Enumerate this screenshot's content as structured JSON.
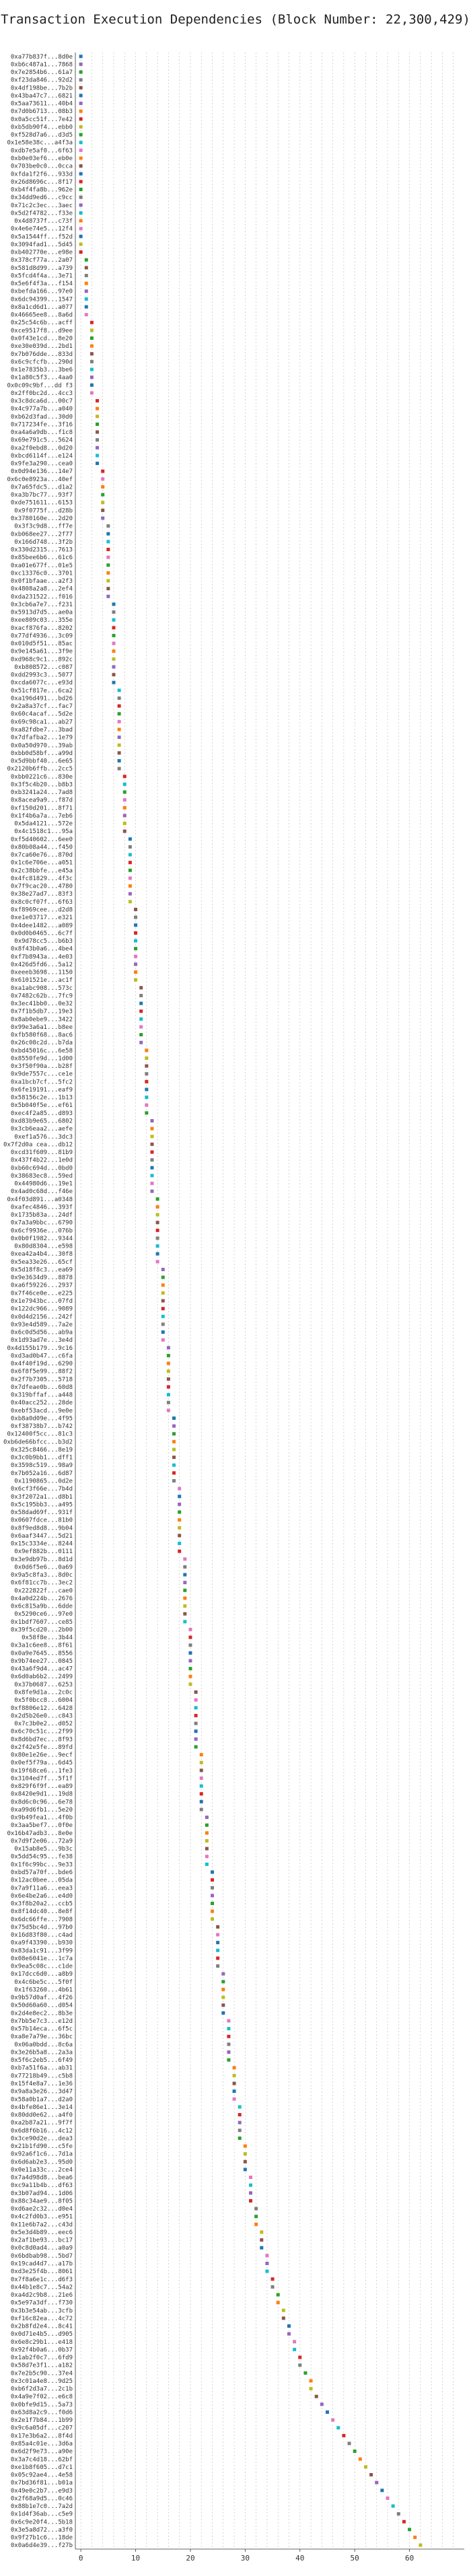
{
  "chart_data": {
    "type": "scatter",
    "title": "Transaction Execution Dependencies (Block Number: 22,300,429)",
    "xlabel": "",
    "ylabel": "",
    "xlim": [
      -1,
      70
    ],
    "xticks": [
      0,
      10,
      20,
      30,
      40,
      50,
      60
    ],
    "grid": true,
    "palette": [
      "#1f77b4",
      "#ff7f0e",
      "#2ca02c",
      "#d62728",
      "#9467bd",
      "#8c564b",
      "#e377c2",
      "#7f7f7f",
      "#bcbd22",
      "#17becf"
    ],
    "transactions": [
      "0xa77b837f...8d0e",
      "0xb6c487a1...7868",
      "0x7e2854b6...61a7",
      "0xf23da846...92d2",
      "0x4df198be...7b2b",
      "0x43ba47c7...6821",
      "0x5aa73611...40b4",
      "0x7d0b6713...08b3",
      "0x0a5cc51f...7e42",
      "0xb5db90f4...ebb0",
      "0xf528d7a6...d3d5",
      "0x1e58e38c...a4f3a",
      "0xdb7e5af0...6f63",
      "0xb0e03ef6...eb0e",
      "0x703be0c0...0cca",
      "0xfda1f2f6...933d",
      "0x26d8696c...8f17",
      "0xb4f4fa8b...962e",
      "0x34dd9ed6...c9cc",
      "0x71c2c3ec...3aec",
      "0x5d2f4782...f33e",
      "0x4d8737f...c73f",
      "0x4e6e74e5...12f4",
      "0x5a1544ff...f52d",
      "0x3094fad1...5d45",
      "0xb402770e...e98e",
      "0x378cf77a...2a07",
      "0x581d8d99...a739",
      "0x5fcd4f4a...3e71",
      "0x5e6f4f3a...f154",
      "0xbefda166...97e0",
      "0x6dc94399...1547",
      "0x8a1cd6d1...a077",
      "0x46665ee8...8a6d",
      "0x25c54c6b...acff",
      "0xce9517f8...d9ee",
      "0x0f43e1cd...8e20",
      "0xe30e039d...2bd1",
      "0x7b076dde...833d",
      "0x6c9cfcfb...290d",
      "0x1e7835b3...3be6",
      "0x1a80c5f3...4aa0",
      "0x0c09c9bf...dd f3",
      "0x2ff0bc2d...4cc3",
      "0x3c8dca6d...00c7",
      "0x4c977a7b...a040",
      "0xb62d3fad...30d0",
      "0x717234fe...3f16",
      "0xa4a6a9db...f1c8",
      "0x69e791c5...5624",
      "0xa2f0ebd8...0d20",
      "0xbcd6114f...e124",
      "0x9fe3a290...cea0",
      "0x0d94e136...14e7",
      "0x6c0e8923a...40ef",
      "0x7a65fdc5...d1a2",
      "0xa3b7bc77...93f7",
      "0xde751611...6153",
      "0x9f0775f...d28b",
      "0x3780160e...2d20",
      "0x3f3c9d8...ff7e",
      "0xb068ee27...2f77",
      "0x166d748...3f2b",
      "0x330d2315...7613",
      "0x85bee6b6...61c6",
      "0xa01e677f...01e5",
      "0xc13376c0...3701",
      "0x0f1bfaae...a2f3",
      "0x4808a2a8...2ef4",
      "0xda231522...f016",
      "0x3cb6a7e7...f231",
      "0x5913d7d5...ae0a",
      "0xee809c03...355e",
      "0xacf876fa...8202",
      "0x77df4936...3c09",
      "0x010d5f51...85ac",
      "0x9e145a61...3f9e",
      "0xd968c9c1...892c",
      "0xb808572...c087",
      "0xdd2993c3...5077",
      "0xcda6077c...e93d",
      "0x51cf817e...6ca2",
      "0xa196d491...bd26",
      "0x2a8a37cf...fac7",
      "0x60c4acaf...5d2e",
      "0x69c98ca1...ab27",
      "0xa82fdbe7...3bad",
      "0x7dfafba2...1e79",
      "0x0a50d970...39ab",
      "0xbb0d58bf...a99d",
      "0x5d9bbf40...6e65",
      "0x2120b6ffb...2cc5",
      "0xbb0221c6...830e",
      "0x3f5c4b20...b8b3",
      "0xb3241a24...7ad8",
      "0x8acea9a9...f87d",
      "0xf150d201...8f71",
      "0x1f4b6a7a...7eb6",
      "0x5da4121...572e",
      "0x4c1518c1...95a",
      "0xf5d40602...6ee0",
      "0x80b08a44...f450",
      "0x7ca60e76...870d",
      "0x1c6e706e...a051",
      "0x2c38bbfe...e45a",
      "0x4fc81829...4f3c",
      "0x7f9cac20...4780",
      "0x38e27ad7...83f3",
      "0x8c0cf07f...6f63",
      "0xf8969cee...d2d8",
      "0xe1e03717...e321",
      "0x4dee1482...a089",
      "0x0d0b0465...6c7f",
      "0x9d78cc5...b6b3",
      "0x8f43b0a6...4be4",
      "0xf7b8943a...4e03",
      "0x426d5fd6...5a12",
      "0xeeeb3698...1150",
      "0x6101521e...ac1f",
      "0xa1abc908...573c",
      "0x7482c62b...7fc9",
      "0x3ec41bb0...0e32",
      "0x7f1b5db7...19e3",
      "0x8ab0ebe9...3422",
      "0x99e3a6a1...b8ee",
      "0xfb580f68...8ac6",
      "0x26c08c2d...b7da",
      "0xbd45016c...6e58",
      "0x8550fe9d...1d00",
      "0x3f50f90a...b28f",
      "0x9de7557c...ce1e",
      "0xa1bcb7cf...5fc2",
      "0x6fe19191...eaf9",
      "0x58156c2e...1b13",
      "0x5b040f5e...ef61",
      "0xec4f2a85...d893",
      "0xd83b9e65...6802",
      "0x3cb6eaa2...aefe",
      "0xef1a576...3dc3",
      "0x7f2d0a cea...db12",
      "0xcd31f609...81b9",
      "0x437f4b22...1e0d",
      "0xb60c694d...0bd0",
      "0x38683ec8...59ed",
      "0x44980d6...19e1",
      "0x4ad0c68d...f46e",
      "0x4f03d891...a0348",
      "0xafec4846...393f",
      "0x1735b83a...24df",
      "0x7a3a9bbc...6790",
      "0x6cf9936e...076b",
      "0x0b0f1982...9344",
      "0x80d8304...e598",
      "0xea42a4b4...30f8",
      "0x5ea33e26...65cf",
      "0x5d18f8c3...ea69",
      "0x9e3634d9...8878",
      "0xa6f59226...2937",
      "0x7f46ce0e...e225",
      "0x1e7943bc...07fd",
      "0x122dc966...9089",
      "0x0d4d2156...242f",
      "0x93e4d589...7a2e",
      "0x6c0d5d56...ab9a",
      "0x1d93ad7e...3e4d",
      "0x4d155b179...9c16",
      "0xd3ad0b47...c6fa",
      "0x4f40f19d...6290",
      "0x6f8f5e99...88f2",
      "0x2f7b7305...5718",
      "0x7dfeae0b...60d8",
      "0x319bffaf...a448",
      "0x40acc252...28de",
      "0xebf53acd...9e0e",
      "0xb8a0d09e...4f95",
      "0xf38738b7...b742",
      "0x12400f5cc...81c3",
      "0xb6de66bfcc...b3d2",
      "0x325c8466...8e19",
      "0x3c0b9bb1...dff1",
      "0x3598c519...98a9",
      "0x7b052a16...6d87",
      "0x1190865...0d2e",
      "0x6cf3f66e...7b4d",
      "0x3f2072a1...d8b1",
      "0x5c195bb3...a495",
      "0x58dad69f...931f",
      "0x0607fdce...81b0",
      "0x8f9ed8d8...9b04",
      "0x6aaf3447...5d21",
      "0x15c3334e...8244",
      "0x9ef882b...0111",
      "0x3e9db97b...8d1d",
      "0x0d6f5e6...0a69",
      "0x9a5c8fa3...8d0c",
      "0x6f81cc7b...3ec2",
      "0x222822f...cae0",
      "0x4a0d224b...2676",
      "0x6c815a9b...6dde",
      "0x5290ce6...97e0",
      "0x1bdf7607...ce85",
      "0x39f5cd20...2b00",
      "0x58f8e...3b44",
      "0x3a1c6ee8...8f61",
      "0x0a9e7645...8556",
      "0x9b74ee27...0845",
      "0x43a6f9d4...ac47",
      "0x6d0ab6b2...2499",
      "0x37b0687...6253",
      "0x8fe9d1a...2c0c",
      "0x5f0bcc8...6004",
      "0xf8806e12...6428",
      "0x2d5b26e0...c843",
      "0x7c3b0e2...d052",
      "0x6c70c51c...2f99",
      "0x8d6bd7ec...8f93",
      "0x2f42e5fe...89fd",
      "0x80e1e26e...9ecf",
      "0x0ef5f79a...6d45",
      "0x19f68ce6...1fe3",
      "0x3104ed7f...5f1f",
      "0x829f6f9f...ea89",
      "0x8420e9d1...19d8",
      "0x8d6c0c96...6e78",
      "0xa99d6fb1...5e20",
      "0x9b49fea1...4f0b",
      "0x3aa5bef7...0f0e",
      "0x16b47adb3...8e0e",
      "0x7d9f2e06...72a9",
      "0x15ab8e5...9b3c",
      "0x5dd54c95...fe38",
      "0x1f6c99bc...9e33",
      "0xbd57a70f...bde6",
      "0x12ac0bee...05da",
      "0x7a9f11a6...eea3",
      "0x6e4be2a6...e4d0",
      "0x3f8b20a2...ccb5",
      "0x8f14dc40...8e8f",
      "0x6dc66ffe...7908",
      "0x75d5bc4d...97b0",
      "0x16d83f80...c4ad",
      "0xa9f43390...b930",
      "0x83da1c91...3f99",
      "0x08e6041e...1c7a",
      "0x9ea5c08c...c1de",
      "0x17dcc6d0...a8b9",
      "0x4c6be5c...5f0f",
      "0x1f63260...4b61",
      "0x9b57d0af...4f26",
      "0x50d60a60...d054",
      "0x2d4e8ec2...8b3e",
      "0x7bb5e7c3...e12d",
      "0x57b14eca...6f5c",
      "0xa8e7a79e...36bc",
      "0x06a0bdd...8c6a",
      "0x3e26b5a8...2a3a",
      "0x5f6c2eb5...6f49",
      "0xb7a51f6a...ab31",
      "0x77218b49...c5b8",
      "0x15f4e8a7...1e36",
      "0x9a8a3e26...3d47",
      "0x58a0b1a7...d2a0",
      "0x4bfe86e1...3e14",
      "0x80dd0e62...a4f0",
      "0xa2b87a21...9f7f",
      "0x6d8f6b16...4c12",
      "0x3ce90d2e...dea3",
      "0x21b1fd90...c5fe",
      "0x92a6f1c6...7d1a",
      "0x6d6ab2e3...95d0",
      "0x0e11a33c...2ce4",
      "0x7a4d98d8...bea6",
      "0xc9a11b4b...df63",
      "0x3b07ad94...1d06",
      "0x88c34ae9...8f05",
      "0xd6ae2c32...d0e4",
      "0x4c2fd0b3...e951",
      "0x11e6b7a2...c43d",
      "0x5e3d4b89...eec6",
      "0x2af1be93...bc17",
      "0x0c8d0ad4...a0a9",
      "0x6bdbab98...5bd7",
      "0x19cad4d7...a17b",
      "0xd3e25f4b...8061",
      "0x7f8a6e1c...d6f3",
      "0x44b1e8c7...54a2",
      "0xa4d2c9b8...21e6",
      "0x5e97a3df...f730",
      "0x3b3e54ab...3cfb",
      "0xf16c82ea...4c72",
      "0x2b8fd2e4...8c41",
      "0x0d71e4b5...d905",
      "0x6e8c29b1...e418",
      "0x92f4b0a6...0b37",
      "0x1ab2f0c7...6fd9",
      "0x58d7e3f1...a182",
      "0x7e2b5c90...37e4",
      "0x3c01a4e8...9d25",
      "0xb6f2d3a7...2c1b",
      "0x4a9e7f02...e6c8",
      "0x0bfe9d15...5a73",
      "0x63d8a2c9...f0d6",
      "0x2e1f7b84...1b99",
      "0x9c6a05df...c207",
      "0x17e3b6a2...8f4d",
      "0x85a4c01e...3d6a",
      "0x6d2f9e73...a90e",
      "0x3a7c4d18...62bf",
      "0xe1b8f605...d7c1",
      "0x05c92ae4...4e58",
      "0x7bd36f81...b01a",
      "0x49e0c2b7...e9d3",
      "0x2f68a9d5...0c46",
      "0x88b1e7c0...7a2d",
      "0x1d4f36ab...c5e9",
      "0x6c9e20f4...5b18",
      "0x3e5a8d72...a3f0",
      "0x9f27b1c6...18de",
      "0x0a6d4e39...f27b"
    ],
    "positions": [
      0,
      0,
      0,
      0,
      0,
      0,
      0,
      0,
      0,
      0,
      0,
      0,
      0,
      0,
      0,
      0,
      0,
      0,
      0,
      0,
      0,
      0,
      0,
      0,
      0,
      0,
      1,
      1,
      1,
      1,
      1,
      1,
      1,
      1,
      2,
      2,
      2,
      2,
      2,
      2,
      2,
      2,
      2,
      2,
      3,
      3,
      3,
      3,
      3,
      3,
      3,
      3,
      3,
      4,
      4,
      4,
      4,
      4,
      4,
      4,
      5,
      5,
      5,
      5,
      5,
      5,
      5,
      5,
      5,
      5,
      6,
      6,
      6,
      6,
      6,
      6,
      6,
      6,
      6,
      6,
      6,
      7,
      7,
      7,
      7,
      7,
      7,
      7,
      7,
      7,
      7,
      7,
      8,
      8,
      8,
      8,
      8,
      8,
      8,
      8,
      9,
      9,
      9,
      9,
      9,
      9,
      9,
      9,
      9,
      10,
      10,
      10,
      10,
      10,
      10,
      10,
      10,
      10,
      10,
      11,
      11,
      11,
      11,
      11,
      11,
      11,
      11,
      12,
      12,
      12,
      12,
      12,
      12,
      12,
      12,
      12,
      13,
      13,
      13,
      13,
      13,
      13,
      13,
      13,
      13,
      13,
      14,
      14,
      14,
      14,
      14,
      14,
      14,
      14,
      14,
      15,
      15,
      15,
      15,
      15,
      15,
      15,
      15,
      15,
      15,
      16,
      16,
      16,
      16,
      16,
      16,
      16,
      16,
      16,
      17,
      17,
      17,
      17,
      17,
      17,
      17,
      17,
      17,
      18,
      18,
      18,
      18,
      18,
      18,
      18,
      18,
      18,
      19,
      19,
      19,
      19,
      19,
      19,
      19,
      19,
      19,
      20,
      20,
      20,
      20,
      20,
      20,
      20,
      20,
      21,
      21,
      21,
      21,
      21,
      21,
      21,
      21,
      22,
      22,
      22,
      22,
      22,
      22,
      22,
      22,
      23,
      23,
      23,
      23,
      23,
      23,
      23,
      24,
      24,
      24,
      24,
      24,
      24,
      24,
      25,
      25,
      25,
      25,
      25,
      25,
      26,
      26,
      26,
      26,
      26,
      26,
      27,
      27,
      27,
      27,
      27,
      27,
      28,
      28,
      28,
      28,
      28,
      29,
      29,
      29,
      29,
      29,
      30,
      30,
      30,
      30,
      31,
      31,
      31,
      31,
      32,
      32,
      32,
      33,
      33,
      33,
      34,
      34,
      34,
      35,
      35,
      36,
      36,
      37,
      37,
      38,
      38,
      39,
      39,
      40,
      40,
      41,
      42,
      42,
      43,
      44,
      45,
      46,
      47,
      48,
      49,
      50,
      51,
      52,
      53,
      54,
      55,
      56,
      57,
      58,
      59,
      60,
      61,
      62,
      63,
      64,
      65,
      66,
      67
    ],
    "colors": [
      0,
      4,
      2,
      7,
      5,
      0,
      4,
      1,
      3,
      8,
      2,
      9,
      6,
      1,
      5,
      0,
      3,
      2,
      7,
      4,
      9,
      1,
      6,
      0,
      8,
      3,
      2,
      5,
      7,
      1,
      4,
      9,
      0,
      6,
      3,
      8,
      2,
      1,
      5,
      7,
      9,
      4,
      0,
      6,
      3,
      1,
      8,
      2,
      5,
      7,
      4,
      9,
      0,
      3,
      6,
      1,
      2,
      8,
      5,
      4,
      7,
      0,
      9,
      3,
      6,
      2,
      1,
      8,
      5,
      4,
      0,
      7,
      9,
      3,
      2,
      6,
      1,
      8,
      4,
      5,
      0,
      9,
      7,
      3,
      2,
      6,
      1,
      4,
      8,
      5,
      0,
      7,
      3,
      9,
      2,
      6,
      1,
      4,
      8,
      5,
      0,
      7,
      9,
      3,
      2,
      6,
      1,
      4,
      8,
      5,
      7,
      0,
      3,
      9,
      2,
      6,
      4,
      1,
      8,
      5,
      7,
      0,
      3,
      9,
      6,
      2,
      4,
      1,
      8,
      5,
      7,
      3,
      0,
      9,
      6,
      2,
      4,
      1,
      8,
      5,
      3,
      7,
      0,
      9,
      6,
      4,
      2,
      1,
      8,
      5,
      3,
      7,
      9,
      0,
      6,
      4,
      2,
      1,
      8,
      5,
      3,
      9,
      7,
      0,
      6,
      4,
      2,
      1,
      8,
      5,
      3,
      9,
      7,
      6,
      0,
      4,
      2,
      1,
      8,
      5,
      9,
      3,
      7,
      6,
      0,
      4,
      2,
      1,
      8,
      5,
      9,
      3,
      6,
      7,
      0,
      4,
      2,
      1,
      8,
      5,
      9,
      6,
      3,
      7,
      0,
      4,
      2,
      1,
      8,
      5,
      6,
      9,
      3,
      7,
      0,
      4,
      2,
      1,
      8,
      5,
      6,
      9,
      3,
      0,
      7,
      4,
      2,
      1,
      8,
      5,
      6,
      9,
      0,
      3,
      7,
      4,
      2,
      1,
      8,
      5,
      6,
      0,
      9,
      3,
      7,
      4,
      2,
      1,
      8,
      5,
      0,
      6,
      9,
      3,
      7,
      4,
      2,
      1,
      8,
      5,
      0,
      6,
      9,
      3,
      4,
      7,
      2,
      1,
      8,
      5,
      0,
      6,
      9,
      4,
      3,
      7,
      2,
      1,
      8,
      5,
      0,
      6,
      4,
      9,
      3,
      7,
      2,
      1,
      8,
      5,
      0,
      4,
      6,
      9,
      3,
      7,
      2,
      1,
      8,
      5,
      4,
      0,
      6,
      9,
      3,
      7,
      2,
      1,
      8,
      5,
      4,
      0,
      6,
      9,
      7,
      3,
      2,
      1,
      8,
      5,
      4,
      0,
      6,
      3
    ]
  }
}
